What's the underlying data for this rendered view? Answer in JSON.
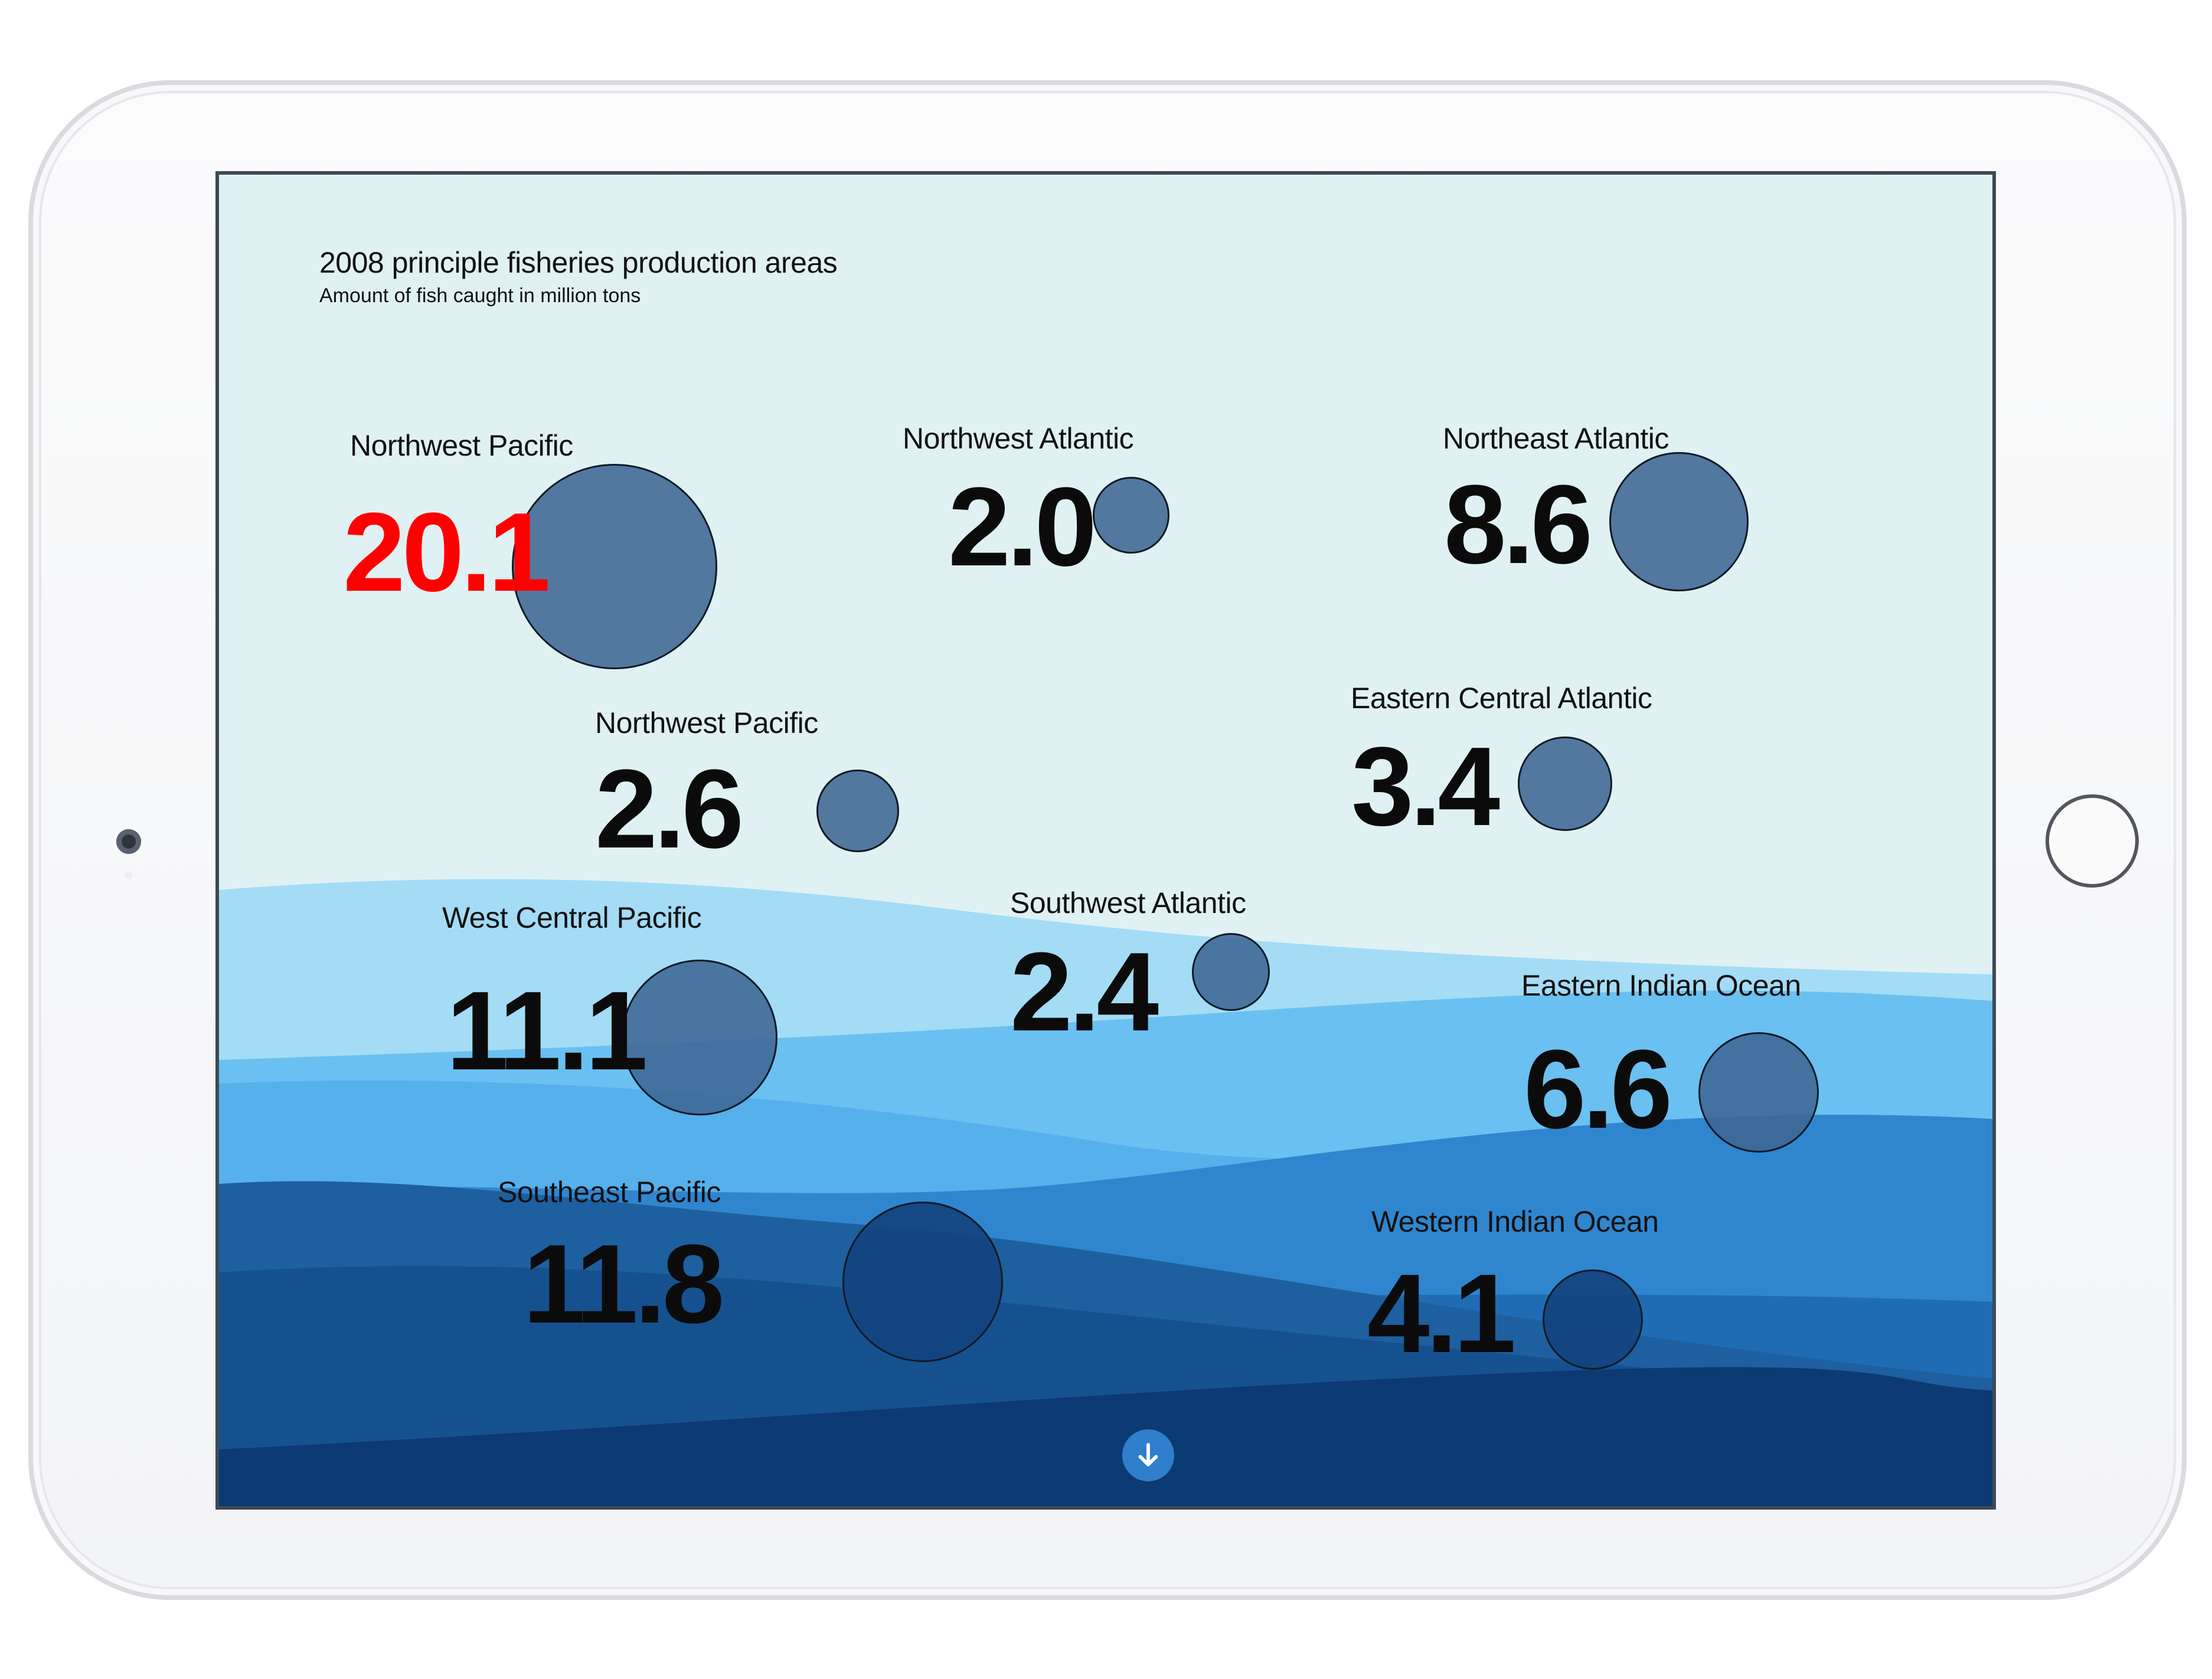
{
  "header": {
    "title": "2008 principle fisheries production areas",
    "subtitle": "Amount of fish caught in million tons"
  },
  "highlight_color": "#ff0000",
  "bubble_color": "#3e6694",
  "regions": [
    {
      "name": "Northwest Pacific",
      "value": "20.1",
      "highlight": true
    },
    {
      "name": "Northwest Atlantic",
      "value": "2.0"
    },
    {
      "name": "Northeast Atlantic",
      "value": "8.6"
    },
    {
      "name": "Northwest Pacific",
      "value": "2.6"
    },
    {
      "name": "Eastern Central Atlantic",
      "value": "3.4"
    },
    {
      "name": "West Central Pacific",
      "value": "11.1"
    },
    {
      "name": "Southwest Atlantic",
      "value": "2.4"
    },
    {
      "name": "Eastern Indian Ocean",
      "value": "6.6"
    },
    {
      "name": "Southeast Pacific",
      "value": "11.8"
    },
    {
      "name": "Western Indian Ocean",
      "value": "4.1"
    }
  ],
  "scroll_button": {
    "icon": "arrow-down-icon"
  }
}
